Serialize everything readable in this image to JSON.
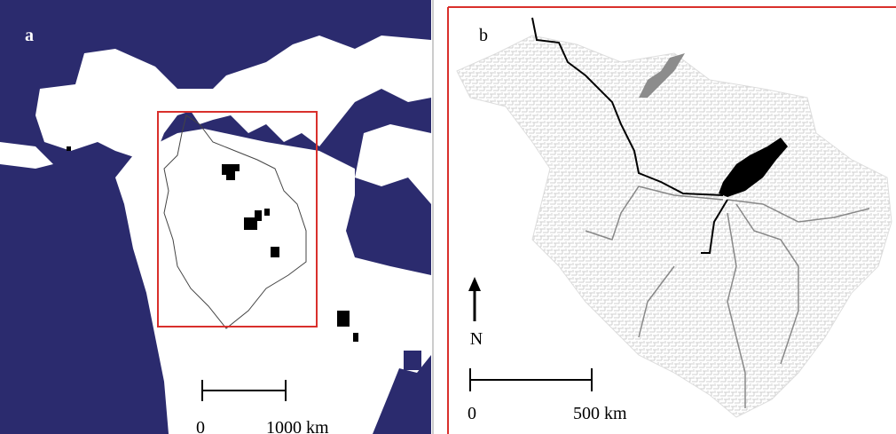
{
  "panels": [
    {
      "label": "a",
      "scale_bar": {
        "start": "0",
        "end": "1000 km"
      }
    },
    {
      "label": "b",
      "north": "N",
      "scale_bar": {
        "start": "0",
        "end": "500 km"
      }
    }
  ]
}
